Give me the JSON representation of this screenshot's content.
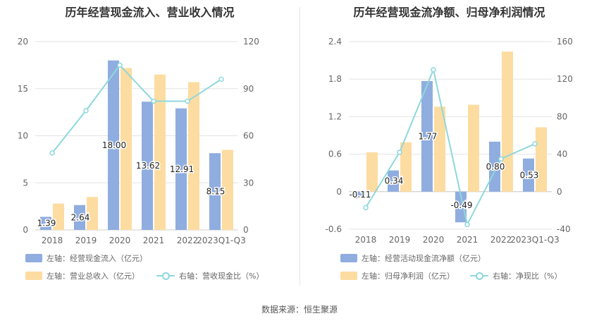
{
  "source_label": "数据来源：恒生聚源",
  "charts": [
    {
      "title": "历年经营现金流入、营业收入情况",
      "legend": {
        "item1": "左轴：经营现金流入（亿元）",
        "item2": "左轴：营业总收入（亿元）",
        "item3": "右轴：营收现金比（%）"
      },
      "left_ticks": [
        "20",
        "15",
        "10",
        "5",
        "0"
      ],
      "right_ticks": [
        "120",
        "90",
        "60",
        "30",
        "0"
      ]
    },
    {
      "title": "历年经营现金流净额、归母净利润情况",
      "legend": {
        "item1": "左轴：经营活动现金流净额（亿元）",
        "item2": "左轴：归母净利润（亿元）",
        "item3": "右轴：净现比（%）"
      },
      "left_ticks": [
        "2.4",
        "1.8",
        "1.2",
        "0.6",
        "0",
        "-0.6"
      ],
      "right_ticks": [
        "160",
        "120",
        "80",
        "40",
        "0",
        "-40"
      ]
    }
  ],
  "chart_data": [
    {
      "type": "bar",
      "title": "历年经营现金流入、营业收入情况",
      "categories": [
        "2018",
        "2019",
        "2020",
        "2021",
        "2022",
        "2023Q1-Q3"
      ],
      "left_ylim": [
        0,
        20
      ],
      "right_ylim": [
        0,
        120
      ],
      "series": [
        {
          "name": "左轴：经营现金流入（亿元）",
          "axis": "left",
          "kind": "bar",
          "color": "#8faddf",
          "values": [
            1.39,
            2.64,
            18.0,
            13.62,
            12.91,
            8.15
          ],
          "labels": [
            "1.39",
            "2.64",
            "18.00",
            "13.62",
            "12.91",
            "8.15"
          ]
        },
        {
          "name": "左轴：营业总收入（亿元）",
          "axis": "left",
          "kind": "bar",
          "color": "#fddca1",
          "values": [
            2.8,
            3.5,
            17.2,
            16.5,
            15.7,
            8.5
          ]
        },
        {
          "name": "右轴：营收现金比（%）",
          "axis": "right",
          "kind": "line",
          "color": "#8ed8dc",
          "values": [
            49,
            76,
            105,
            82,
            82,
            96
          ]
        }
      ]
    },
    {
      "type": "bar",
      "title": "历年经营现金流净额、归母净利润情况",
      "categories": [
        "2018",
        "2019",
        "2020",
        "2021",
        "2022",
        "2023Q1-Q3"
      ],
      "left_ylim": [
        -0.6,
        2.4
      ],
      "right_ylim": [
        -40,
        160
      ],
      "series": [
        {
          "name": "左轴：经营活动现金流净额（亿元）",
          "axis": "left",
          "kind": "bar",
          "color": "#8faddf",
          "values": [
            -0.11,
            0.34,
            1.77,
            -0.49,
            0.8,
            0.53
          ],
          "labels": [
            "-0.11",
            "0.34",
            "1.77",
            "-0.49",
            "0.80",
            "0.53"
          ]
        },
        {
          "name": "左轴：归母净利润（亿元）",
          "axis": "left",
          "kind": "bar",
          "color": "#fddca1",
          "values": [
            0.63,
            0.79,
            1.36,
            1.39,
            2.24,
            1.03
          ]
        },
        {
          "name": "右轴：净现比（%）",
          "axis": "right",
          "kind": "line",
          "color": "#8ed8dc",
          "values": [
            -17,
            42,
            130,
            -35,
            35,
            51
          ]
        }
      ]
    }
  ]
}
